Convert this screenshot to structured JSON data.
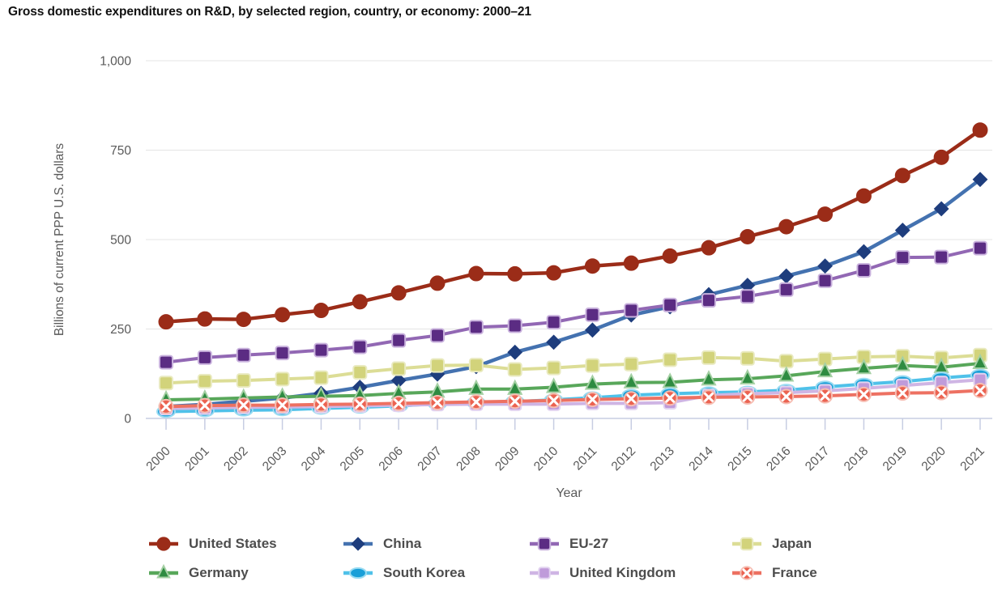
{
  "title": "Gross domestic expenditures on R&D, by selected region, country, or economy: 2000–21",
  "axis_colors": {
    "grid": "#e4e4e4",
    "axis_line": "#c7cde2",
    "tick": "#c7cde2",
    "tick_label": "#595959",
    "axis_title": "#595959"
  },
  "chart_data": {
    "type": "line",
    "title": "Gross domestic expenditures on R&D, by selected region, country, or economy: 2000–21",
    "xlabel": "Year",
    "ylabel": "Billions of current PPP U.S. dollars",
    "x": [
      2000,
      2001,
      2002,
      2003,
      2004,
      2005,
      2006,
      2007,
      2008,
      2009,
      2010,
      2011,
      2012,
      2013,
      2014,
      2015,
      2016,
      2017,
      2018,
      2019,
      2020,
      2021
    ],
    "ylim": [
      0,
      1000
    ],
    "yticks": [
      0,
      250,
      500,
      750,
      1000
    ],
    "ytick_labels": [
      "0",
      "250",
      "500",
      "750",
      "1,000"
    ],
    "grid": true,
    "legend_position": "bottom",
    "legend_columns": 4,
    "series": [
      {
        "name": "United States",
        "marker": "circle",
        "marker_size": 8.5,
        "color": "#9b2c18",
        "line_color": "#9b2c18",
        "halo": "#9b2c18",
        "line_width": 4.5,
        "values": [
          270,
          278,
          277,
          290,
          302,
          326,
          351,
          378,
          405,
          404,
          407,
          426,
          434,
          454,
          477,
          508,
          536,
          571,
          622,
          679,
          730,
          806
        ]
      },
      {
        "name": "China",
        "marker": "diamond",
        "marker_size": 8,
        "color": "#1e3d7d",
        "line_color": "#4472b0",
        "halo": "#1e3d7d",
        "line_width": 4.5,
        "values": [
          33,
          39,
          48,
          57,
          70,
          87,
          106,
          124,
          145,
          185,
          213,
          247,
          289,
          312,
          346,
          372,
          398,
          426,
          466,
          526,
          586,
          668
        ]
      },
      {
        "name": "EU-27",
        "marker": "square",
        "marker_size": 16,
        "color": "#5b2c83",
        "line_color": "#9268b4",
        "halo": "#c9b2dd",
        "line_width": 4,
        "values": [
          157,
          170,
          177,
          183,
          191,
          200,
          218,
          232,
          255,
          259,
          269,
          290,
          302,
          317,
          330,
          341,
          360,
          385,
          414,
          450,
          451,
          476
        ]
      },
      {
        "name": "Japan",
        "marker": "square",
        "marker_size": 16,
        "color": "#d2d37b",
        "line_color": "#dcdd96",
        "halo": "#e9eac0",
        "line_width": 4,
        "values": [
          99,
          104,
          106,
          110,
          114,
          129,
          139,
          148,
          149,
          137,
          141,
          148,
          152,
          164,
          170,
          168,
          160,
          166,
          172,
          174,
          169,
          177
        ]
      },
      {
        "name": "Germany",
        "marker": "triangle",
        "marker_size": 16,
        "color": "#2e8b41",
        "line_color": "#58a75a",
        "halo": "#a5d0a4",
        "line_width": 4,
        "values": [
          52,
          54,
          57,
          60,
          62,
          64,
          70,
          74,
          82,
          82,
          87,
          96,
          100,
          101,
          108,
          111,
          119,
          131,
          140,
          148,
          143,
          154
        ]
      },
      {
        "name": "South Korea",
        "marker": "ellipse",
        "marker_size": 11,
        "color": "#1a9fd8",
        "line_color": "#4fc1e9",
        "halo": "#9adcf2",
        "line_width": 4,
        "values": [
          19,
          21,
          23,
          24,
          28,
          31,
          35,
          41,
          44,
          47,
          52,
          58,
          65,
          69,
          72,
          74,
          79,
          88,
          96,
          103,
          113,
          121
        ]
      },
      {
        "name": "United Kingdom",
        "marker": "square",
        "marker_size": 15,
        "color": "#bf9bda",
        "line_color": "#cfb5e4",
        "halo": "#e2d3f0",
        "line_width": 4,
        "values": [
          28,
          29,
          31,
          32,
          33,
          35,
          37,
          39,
          40,
          40,
          40,
          42,
          42,
          44,
          64,
          69,
          72,
          77,
          84,
          92,
          100,
          108
        ]
      },
      {
        "name": "France",
        "marker": "circle-x",
        "marker_size": 8.5,
        "color": "#eb6351",
        "line_color": "#ed7162",
        "halo": "#f6bdb2",
        "line_width": 4,
        "values": [
          33,
          36,
          37,
          37,
          39,
          40,
          42,
          44,
          46,
          48,
          50,
          53,
          55,
          57,
          59,
          60,
          61,
          63,
          67,
          71,
          72,
          78
        ]
      }
    ]
  }
}
